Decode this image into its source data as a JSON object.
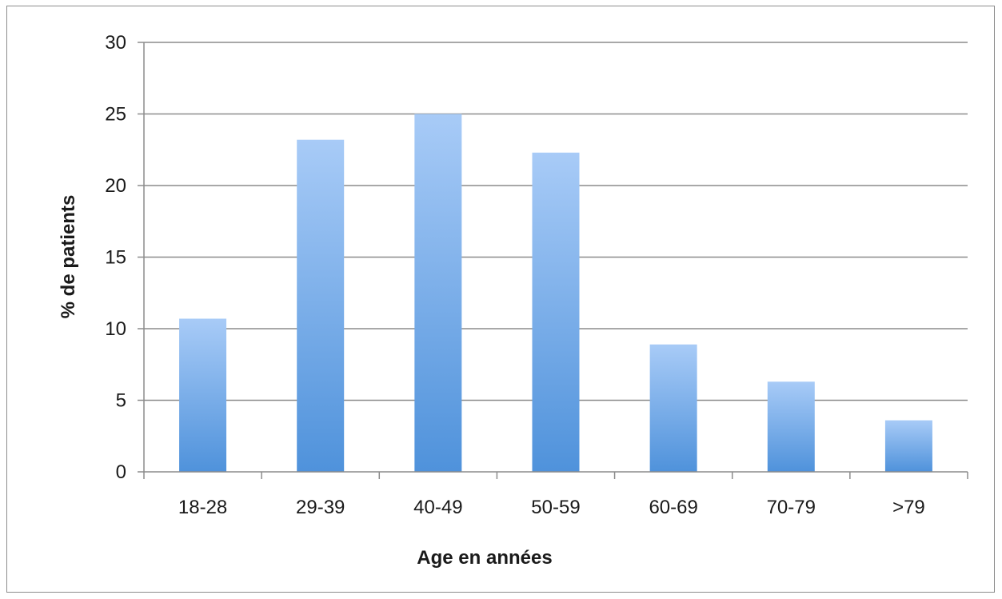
{
  "chart_data": {
    "type": "bar",
    "categories": [
      "18-28",
      "29-39",
      "40-49",
      "50-59",
      "60-69",
      "70-79",
      ">79"
    ],
    "values": [
      10.7,
      23.2,
      25.0,
      22.3,
      8.9,
      6.3,
      3.6
    ],
    "xlabel": "Age en années",
    "ylabel": "% de patients",
    "ylim": [
      0,
      30
    ],
    "yticks": [
      0,
      5,
      10,
      15,
      20,
      25,
      30
    ],
    "grid": true,
    "legend": "none",
    "colors": {
      "bar_top": "#a8cbf7",
      "bar_bottom": "#4f92db",
      "grid": "#8c8c8c"
    }
  }
}
